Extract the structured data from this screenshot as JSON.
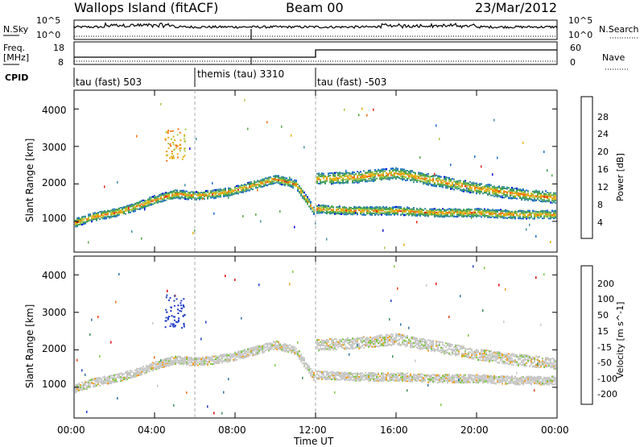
{
  "header": {
    "station": "Wallops Island (fitACF)",
    "beam": "Beam 00",
    "date": "23/Mar/2012"
  },
  "top_panels": {
    "nsky_label": "N.Sky",
    "nsearch_label": "N.Search",
    "freq_label": "Freq.",
    "freq_unit": "[MHz]",
    "nave_label": "Nave",
    "cpid_label": "CPID",
    "noise_ticks_top": "10^5",
    "noise_ticks_bottom": "10^0",
    "freq_ticks": [
      "18",
      "8"
    ],
    "nave_ticks": [
      "60",
      "0"
    ],
    "cpid_segments": [
      "tau (fast) 503",
      "themis (tau) 3310",
      "tau (fast) -503"
    ]
  },
  "colors": {
    "power_scale": [
      "#0000e0",
      "#1f6bd0",
      "#3e8fa0",
      "#3b9a5e",
      "#58a848",
      "#a8c848",
      "#e8b010",
      "#f07010",
      "#e02010"
    ],
    "velocity_scale": [
      "#1e3cc8",
      "#2a70a0",
      "#3a8e5e",
      "#7cc840",
      "#c8c8c8",
      "#f0a020",
      "#f07010",
      "#e84010",
      "#e00000"
    ]
  },
  "chart_data": [
    {
      "type": "heatmap",
      "title": "",
      "xlabel": "Time UT",
      "ylabel": "Slant Range [km]",
      "x_ticks": [
        "00:00",
        "04:00",
        "08:00",
        "12:00",
        "16:00",
        "20:00",
        "00:00"
      ],
      "y_ticks": [
        "1000",
        "2000",
        "3000",
        "4000"
      ],
      "xlim": [
        0,
        24
      ],
      "ylim": [
        180,
        4500
      ],
      "colorbar_label": "Power [dB]",
      "colorbar_ticks": [
        "28",
        "24",
        "20",
        "16",
        "12",
        "8",
        "4"
      ],
      "colorbar_range": [
        0,
        30
      ],
      "mode_change_hours": [
        6,
        12
      ],
      "echo_bands": [
        {
          "name": "lower",
          "x": [
            0,
            1,
            2,
            3,
            4,
            5,
            6,
            7,
            8,
            9,
            10,
            11,
            11.9
          ],
          "y": [
            980,
            1150,
            1250,
            1400,
            1600,
            1750,
            1700,
            1750,
            1850,
            2000,
            2150,
            2000,
            1300
          ]
        },
        {
          "name": "upper",
          "x": [
            12,
            14,
            16,
            18,
            20,
            22,
            24
          ],
          "y": [
            2150,
            2200,
            2300,
            2100,
            1900,
            1750,
            1650
          ]
        },
        {
          "name": "bottom",
          "x": [
            12,
            14,
            16,
            18,
            20,
            22,
            24
          ],
          "y": [
            1350,
            1300,
            1300,
            1250,
            1250,
            1200,
            1200
          ]
        }
      ]
    },
    {
      "type": "heatmap",
      "title": "",
      "xlabel": "Time UT",
      "ylabel": "Slant Range [km]",
      "x_ticks": [
        "00:00",
        "04:00",
        "08:00",
        "12:00",
        "16:00",
        "20:00",
        "00:00"
      ],
      "y_ticks": [
        "1000",
        "2000",
        "3000",
        "4000"
      ],
      "xlim": [
        0,
        24
      ],
      "ylim": [
        180,
        4500
      ],
      "colorbar_label": "Velocity [m s^-1]",
      "colorbar_ticks": [
        "200",
        "100",
        "50",
        "15",
        "-15",
        "-50",
        "-100",
        "-200"
      ],
      "colorbar_range": [
        -250,
        250
      ]
    }
  ],
  "footer": {
    "time_label": "Time UT",
    "x_ticks": [
      "00:00",
      "04:00",
      "08:00",
      "12:00",
      "16:00",
      "20:00",
      "00:00"
    ]
  }
}
